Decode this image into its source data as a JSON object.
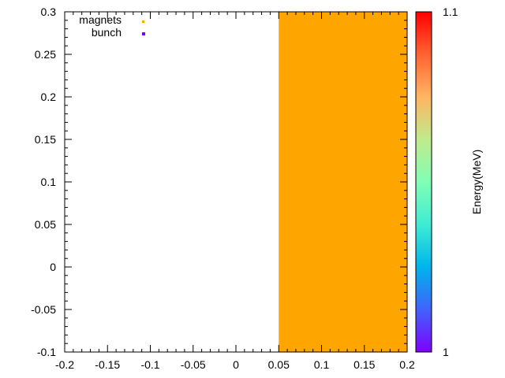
{
  "chart_data": {
    "type": "scatter",
    "title": "",
    "xlabel": "",
    "ylabel": "",
    "xlim": [
      -0.2,
      0.2
    ],
    "ylim": [
      -0.1,
      0.3
    ],
    "x_ticks": [
      "-0.2",
      "-0.15",
      "-0.1",
      "-0.05",
      "0",
      "0.05",
      "0.1",
      "0.15",
      "0.2"
    ],
    "y_ticks": [
      "-0.1",
      "-0.05",
      "0",
      "0.05",
      "0.1",
      "0.15",
      "0.2",
      "0.25",
      "0.3"
    ],
    "x_tick_values": [
      -0.2,
      -0.15,
      -0.1,
      -0.05,
      0,
      0.05,
      0.1,
      0.15,
      0.2
    ],
    "y_tick_values": [
      -0.1,
      -0.05,
      0,
      0.05,
      0.1,
      0.15,
      0.2,
      0.25,
      0.3
    ],
    "grid": false,
    "legend": {
      "placement": "top-left",
      "entries": [
        {
          "label": "magnets",
          "color": "#ffa500"
        },
        {
          "label": "bunch",
          "color": "#7f00ff"
        }
      ]
    },
    "regions": [
      {
        "name": "magnets",
        "x_range": [
          0.05,
          0.2
        ],
        "y_range": [
          -0.1,
          0.3
        ],
        "color": "#ffa500"
      }
    ],
    "colorbar": {
      "label": "Energy(MeV)",
      "min_label": "1",
      "max_label": "1.1",
      "min": 1.0,
      "max": 1.1,
      "colormap": "rainbow"
    }
  }
}
